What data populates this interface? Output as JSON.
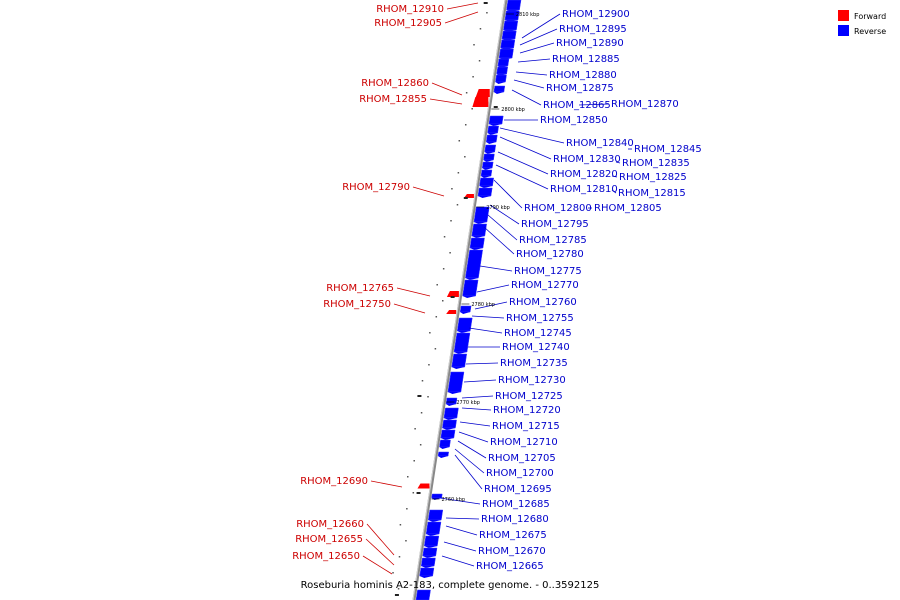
{
  "legend": {
    "forward": {
      "label": "Forward",
      "color": "#ff0000"
    },
    "reverse": {
      "label": "Reverse",
      "color": "#0000ff"
    }
  },
  "colors": {
    "label_forward": "#cc0000",
    "label_reverse": "#0000cc",
    "axis": "#888888"
  },
  "caption": "Roseburia hominis A2-183, complete genome. - 0..3592125",
  "ticks": [
    "2810 kbp",
    "2800 kbp",
    "2790 kbp",
    "2780 kbp",
    "2770 kbp",
    "2760 kbp"
  ],
  "genes": [
    {
      "name": "RHOM_12910",
      "strand": "forward"
    },
    {
      "name": "RHOM_12905",
      "strand": "forward"
    },
    {
      "name": "RHOM_12900",
      "strand": "reverse"
    },
    {
      "name": "RHOM_12895",
      "strand": "reverse"
    },
    {
      "name": "RHOM_12890",
      "strand": "reverse"
    },
    {
      "name": "RHOM_12885",
      "strand": "reverse"
    },
    {
      "name": "RHOM_12880",
      "strand": "reverse"
    },
    {
      "name": "RHOM_12875",
      "strand": "reverse"
    },
    {
      "name": "RHOM_12860",
      "strand": "forward"
    },
    {
      "name": "RHOM_12855",
      "strand": "forward"
    },
    {
      "name": "RHOM_12865",
      "strand": "reverse"
    },
    {
      "name": "RHOM_12870",
      "strand": "reverse"
    },
    {
      "name": "RHOM_12850",
      "strand": "reverse"
    },
    {
      "name": "RHOM_12840",
      "strand": "reverse"
    },
    {
      "name": "RHOM_12845",
      "strand": "reverse"
    },
    {
      "name": "RHOM_12830",
      "strand": "reverse"
    },
    {
      "name": "RHOM_12835",
      "strand": "reverse"
    },
    {
      "name": "RHOM_12820",
      "strand": "reverse"
    },
    {
      "name": "RHOM_12825",
      "strand": "reverse"
    },
    {
      "name": "RHOM_12810",
      "strand": "reverse"
    },
    {
      "name": "RHOM_12815",
      "strand": "reverse"
    },
    {
      "name": "RHOM_12790",
      "strand": "forward"
    },
    {
      "name": "RHOM_12800",
      "strand": "reverse"
    },
    {
      "name": "RHOM_12805",
      "strand": "reverse"
    },
    {
      "name": "RHOM_12795",
      "strand": "reverse"
    },
    {
      "name": "RHOM_12785",
      "strand": "reverse"
    },
    {
      "name": "RHOM_12780",
      "strand": "reverse"
    },
    {
      "name": "RHOM_12775",
      "strand": "reverse"
    },
    {
      "name": "RHOM_12770",
      "strand": "reverse"
    },
    {
      "name": "RHOM_12765",
      "strand": "forward"
    },
    {
      "name": "RHOM_12760",
      "strand": "reverse"
    },
    {
      "name": "RHOM_12750",
      "strand": "forward"
    },
    {
      "name": "RHOM_12755",
      "strand": "reverse"
    },
    {
      "name": "RHOM_12745",
      "strand": "reverse"
    },
    {
      "name": "RHOM_12740",
      "strand": "reverse"
    },
    {
      "name": "RHOM_12735",
      "strand": "reverse"
    },
    {
      "name": "RHOM_12730",
      "strand": "reverse"
    },
    {
      "name": "RHOM_12725",
      "strand": "reverse"
    },
    {
      "name": "RHOM_12720",
      "strand": "reverse"
    },
    {
      "name": "RHOM_12715",
      "strand": "reverse"
    },
    {
      "name": "RHOM_12710",
      "strand": "reverse"
    },
    {
      "name": "RHOM_12705",
      "strand": "reverse"
    },
    {
      "name": "RHOM_12700",
      "strand": "reverse"
    },
    {
      "name": "RHOM_12690",
      "strand": "forward"
    },
    {
      "name": "RHOM_12695",
      "strand": "reverse"
    },
    {
      "name": "RHOM_12685",
      "strand": "reverse"
    },
    {
      "name": "RHOM_12680",
      "strand": "reverse"
    },
    {
      "name": "RHOM_12660",
      "strand": "forward"
    },
    {
      "name": "RHOM_12675",
      "strand": "reverse"
    },
    {
      "name": "RHOM_12655",
      "strand": "forward"
    },
    {
      "name": "RHOM_12670",
      "strand": "reverse"
    },
    {
      "name": "RHOM_12650",
      "strand": "forward"
    },
    {
      "name": "RHOM_12665",
      "strand": "reverse"
    }
  ]
}
